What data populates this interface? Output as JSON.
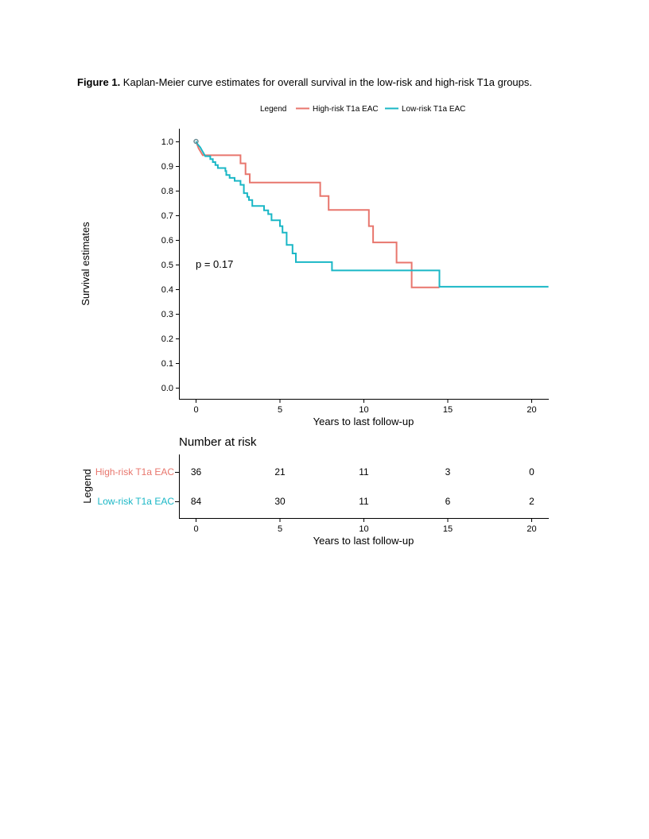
{
  "caption": {
    "label": "Figure 1.",
    "text": " Kaplan-Meier curve estimates for overall survival in the low-risk and high-risk T1a groups."
  },
  "colors": {
    "high": "#e8766d",
    "low": "#1ab7c6",
    "axis": "#000000"
  },
  "chart_data": {
    "type": "line",
    "step": true,
    "legend": {
      "title": "Legend",
      "position": "top",
      "entries": [
        "High-risk T1a EAC",
        "Low-risk T1a EAC"
      ]
    },
    "xlabel": "Years to last follow-up",
    "ylabel": "Survival estimates",
    "xlim": [
      -1,
      21
    ],
    "ylim": [
      -0.05,
      1.05
    ],
    "x_ticks": [
      "0",
      "5",
      "10",
      "15",
      "20"
    ],
    "y_ticks": [
      "0.0",
      "0.1",
      "0.2",
      "0.3",
      "0.4",
      "0.5",
      "0.6",
      "0.7",
      "0.8",
      "0.9",
      "1.0"
    ],
    "annotation": "p = 0.17",
    "grid": false,
    "series": [
      {
        "name": "High-risk T1a EAC",
        "points": [
          [
            0,
            1.0
          ],
          [
            0.15,
            0.972
          ],
          [
            0.4,
            0.944
          ],
          [
            2.65,
            0.944
          ],
          [
            2.65,
            0.911
          ],
          [
            2.95,
            0.911
          ],
          [
            2.95,
            0.867
          ],
          [
            3.2,
            0.867
          ],
          [
            3.2,
            0.833
          ],
          [
            7.4,
            0.833
          ],
          [
            7.4,
            0.778
          ],
          [
            7.9,
            0.778
          ],
          [
            7.9,
            0.722
          ],
          [
            10.3,
            0.722
          ],
          [
            10.3,
            0.656
          ],
          [
            10.55,
            0.656
          ],
          [
            10.55,
            0.59
          ],
          [
            11.95,
            0.59
          ],
          [
            11.95,
            0.508
          ],
          [
            12.85,
            0.508
          ],
          [
            12.85,
            0.407
          ],
          [
            14.5,
            0.407
          ]
        ]
      },
      {
        "name": "Low-risk T1a EAC",
        "points": [
          [
            0,
            1.0
          ],
          [
            0.1,
            0.988
          ],
          [
            0.25,
            0.976
          ],
          [
            0.35,
            0.964
          ],
          [
            0.45,
            0.952
          ],
          [
            0.55,
            0.94
          ],
          [
            0.85,
            0.94
          ],
          [
            0.85,
            0.928
          ],
          [
            1.0,
            0.928
          ],
          [
            1.0,
            0.916
          ],
          [
            1.15,
            0.916
          ],
          [
            1.15,
            0.904
          ],
          [
            1.3,
            0.904
          ],
          [
            1.3,
            0.892
          ],
          [
            1.75,
            0.892
          ],
          [
            1.75,
            0.88
          ],
          [
            1.8,
            0.88
          ],
          [
            1.8,
            0.864
          ],
          [
            2.0,
            0.864
          ],
          [
            2.0,
            0.852
          ],
          [
            2.3,
            0.852
          ],
          [
            2.3,
            0.84
          ],
          [
            2.65,
            0.84
          ],
          [
            2.65,
            0.824
          ],
          [
            2.85,
            0.824
          ],
          [
            2.85,
            0.79
          ],
          [
            3.05,
            0.79
          ],
          [
            3.05,
            0.775
          ],
          [
            3.15,
            0.775
          ],
          [
            3.15,
            0.762
          ],
          [
            3.35,
            0.762
          ],
          [
            3.35,
            0.738
          ],
          [
            4.05,
            0.738
          ],
          [
            4.05,
            0.72
          ],
          [
            4.3,
            0.72
          ],
          [
            4.3,
            0.705
          ],
          [
            4.5,
            0.705
          ],
          [
            4.5,
            0.68
          ],
          [
            5.0,
            0.68
          ],
          [
            5.0,
            0.656
          ],
          [
            5.15,
            0.656
          ],
          [
            5.15,
            0.63
          ],
          [
            5.4,
            0.63
          ],
          [
            5.4,
            0.58
          ],
          [
            5.75,
            0.58
          ],
          [
            5.75,
            0.545
          ],
          [
            5.95,
            0.545
          ],
          [
            5.95,
            0.51
          ],
          [
            8.1,
            0.51
          ],
          [
            8.1,
            0.476
          ],
          [
            14.5,
            0.476
          ],
          [
            14.5,
            0.41
          ],
          [
            21,
            0.41
          ]
        ]
      }
    ],
    "risk_table": {
      "title": "Number at risk",
      "legend_title": "Legend",
      "xlabel": "Years to last follow-up",
      "x_ticks": [
        "0",
        "5",
        "10",
        "15",
        "20"
      ],
      "times": [
        0,
        5,
        10,
        15,
        20
      ],
      "rows": [
        {
          "name": "High-risk T1a EAC",
          "values": [
            "36",
            "21",
            "11",
            "3",
            "0"
          ]
        },
        {
          "name": "Low-risk T1a EAC",
          "values": [
            "84",
            "30",
            "11",
            "6",
            "2"
          ]
        }
      ]
    }
  }
}
